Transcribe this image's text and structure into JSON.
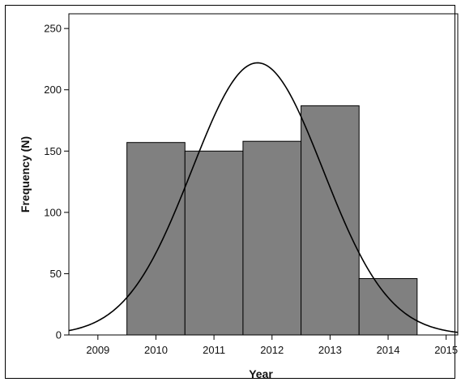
{
  "chart_data": {
    "type": "bar",
    "subtype": "histogram-with-normal-curve",
    "title": "",
    "xlabel": "Year",
    "ylabel": "Frequency (N)",
    "xlim": [
      2008.5,
      2015.2
    ],
    "ylim": [
      0,
      262
    ],
    "x_ticks": [
      2009,
      2010,
      2011,
      2012,
      2013,
      2014,
      2015
    ],
    "y_ticks": [
      0,
      50,
      100,
      150,
      200,
      250
    ],
    "categories": [
      "2010",
      "2011",
      "2012",
      "2013",
      "2014"
    ],
    "values": [
      157,
      150,
      158,
      187,
      46
    ],
    "bar_color": "#808080",
    "curve": {
      "type": "normal",
      "mean": 2011.75,
      "sd": 1.13,
      "peak": 222,
      "color": "#000000"
    },
    "grid": false,
    "legend": "none"
  }
}
